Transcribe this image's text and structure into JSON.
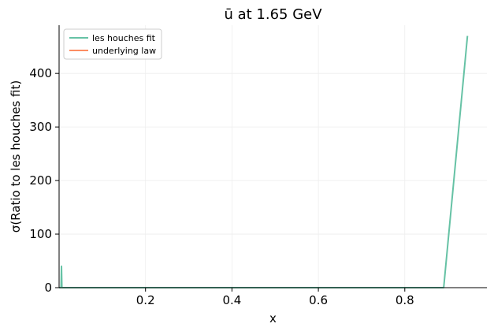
{
  "chart_data": {
    "type": "line",
    "title": "ū at 1.65 GeV",
    "xlabel": "x",
    "ylabel": "σ(Ratio to les houches fit)",
    "xlim": [
      0.0,
      0.99
    ],
    "ylim": [
      0,
      490
    ],
    "xticks": [
      0.2,
      0.4,
      0.6,
      0.8
    ],
    "xtick_labels": [
      "0.2",
      "0.4",
      "0.6",
      "0.8"
    ],
    "yticks": [
      0,
      100,
      200,
      300,
      400
    ],
    "ytick_labels": [
      "0",
      "100",
      "200",
      "300",
      "400"
    ],
    "grid": true,
    "legend": "top-left",
    "series": [
      {
        "name": "les houches fit",
        "color": "#66c2a5",
        "x": [
          1e-05,
          0.0045,
          0.0055,
          0.0065,
          0.2,
          0.4,
          0.6,
          0.8,
          0.89,
          0.945
        ],
        "y": [
          0,
          0,
          40,
          0,
          0,
          0,
          0,
          0,
          0,
          470
        ]
      },
      {
        "name": "underlying law",
        "color": "#fc8d62",
        "x": [],
        "y": []
      }
    ]
  }
}
